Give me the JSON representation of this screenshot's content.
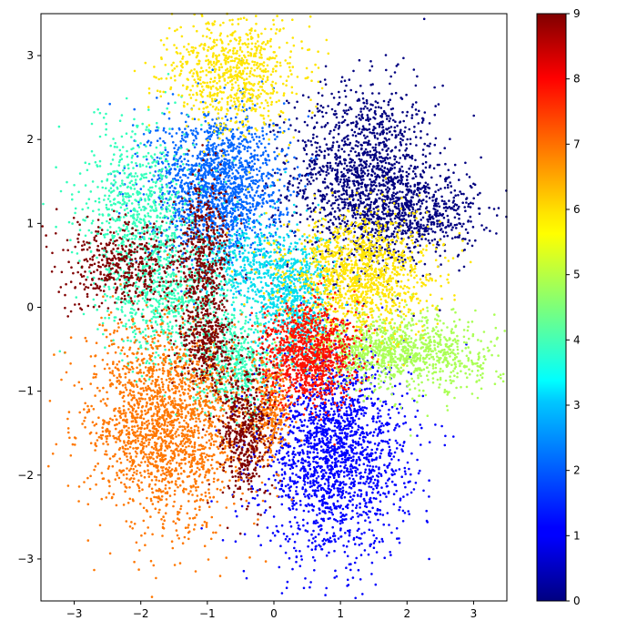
{
  "chart_data": {
    "type": "scatter",
    "title": "",
    "xlabel": "",
    "ylabel": "",
    "xlim": [
      -3.5,
      3.5
    ],
    "ylim": [
      -3.5,
      3.5
    ],
    "xticks": [
      -3,
      -2,
      -1,
      0,
      1,
      2,
      3
    ],
    "yticks": [
      -3,
      -2,
      -1,
      0,
      1,
      2,
      3
    ],
    "grid": false,
    "colormap": "jet",
    "colorbar": {
      "min": 0,
      "max": 9,
      "ticks": [
        0,
        1,
        2,
        3,
        4,
        5,
        6,
        7,
        8,
        9
      ],
      "placement": "right"
    },
    "class_colors": [
      "#000080",
      "#0000ff",
      "#0066ff",
      "#00ddee",
      "#33ffbb",
      "#aaff55",
      "#ffe500",
      "#ff7700",
      "#ff1100",
      "#800000"
    ],
    "clusters": [
      {
        "label": 0,
        "center": [
          1.35,
          1.55
        ],
        "spread": [
          0.55,
          0.55
        ],
        "count": 1500
      },
      {
        "label": 0,
        "center": [
          2.2,
          1.1
        ],
        "spread": [
          0.45,
          0.25
        ],
        "count": 500
      },
      {
        "label": 1,
        "center": [
          0.9,
          -1.75
        ],
        "spread": [
          0.55,
          0.6
        ],
        "count": 2000
      },
      {
        "label": 2,
        "center": [
          -0.85,
          1.45
        ],
        "spread": [
          0.5,
          0.45
        ],
        "count": 1700
      },
      {
        "label": 3,
        "center": [
          0.3,
          0.1
        ],
        "spread": [
          0.3,
          0.4
        ],
        "count": 800
      },
      {
        "label": 3,
        "center": [
          -0.5,
          0.5
        ],
        "spread": [
          0.3,
          0.25
        ],
        "count": 300
      },
      {
        "label": 4,
        "center": [
          -2.0,
          1.2
        ],
        "spread": [
          0.45,
          0.5
        ],
        "count": 700
      },
      {
        "label": 4,
        "center": [
          -1.6,
          0.1
        ],
        "spread": [
          0.5,
          0.4
        ],
        "count": 700
      },
      {
        "label": 4,
        "center": [
          -0.6,
          -0.7
        ],
        "spread": [
          0.3,
          0.3
        ],
        "count": 500
      },
      {
        "label": 5,
        "center": [
          1.6,
          -0.5
        ],
        "spread": [
          0.6,
          0.2
        ],
        "count": 900
      },
      {
        "label": 5,
        "center": [
          2.6,
          -0.6
        ],
        "spread": [
          0.5,
          0.25
        ],
        "count": 300
      },
      {
        "label": 6,
        "center": [
          -0.6,
          2.8
        ],
        "spread": [
          0.5,
          0.35
        ],
        "count": 800
      },
      {
        "label": 6,
        "center": [
          1.3,
          0.4
        ],
        "spread": [
          0.55,
          0.35
        ],
        "count": 1300
      },
      {
        "label": 7,
        "center": [
          -1.6,
          -1.4
        ],
        "spread": [
          0.6,
          0.6
        ],
        "count": 2000
      },
      {
        "label": 7,
        "center": [
          -0.05,
          -1.2
        ],
        "spread": [
          0.15,
          0.3
        ],
        "count": 300
      },
      {
        "label": 8,
        "center": [
          0.55,
          -0.55
        ],
        "spread": [
          0.35,
          0.3
        ],
        "count": 1000
      },
      {
        "label": 9,
        "center": [
          -2.2,
          0.5
        ],
        "spread": [
          0.5,
          0.25
        ],
        "count": 500
      },
      {
        "label": 9,
        "center": [
          -1.05,
          0.6
        ],
        "spread": [
          0.2,
          0.5
        ],
        "count": 500
      },
      {
        "label": 9,
        "center": [
          -1.05,
          -0.45
        ],
        "spread": [
          0.2,
          0.25
        ],
        "count": 300
      },
      {
        "label": 9,
        "center": [
          -0.45,
          -1.45
        ],
        "spread": [
          0.2,
          0.4
        ],
        "count": 500
      }
    ]
  }
}
